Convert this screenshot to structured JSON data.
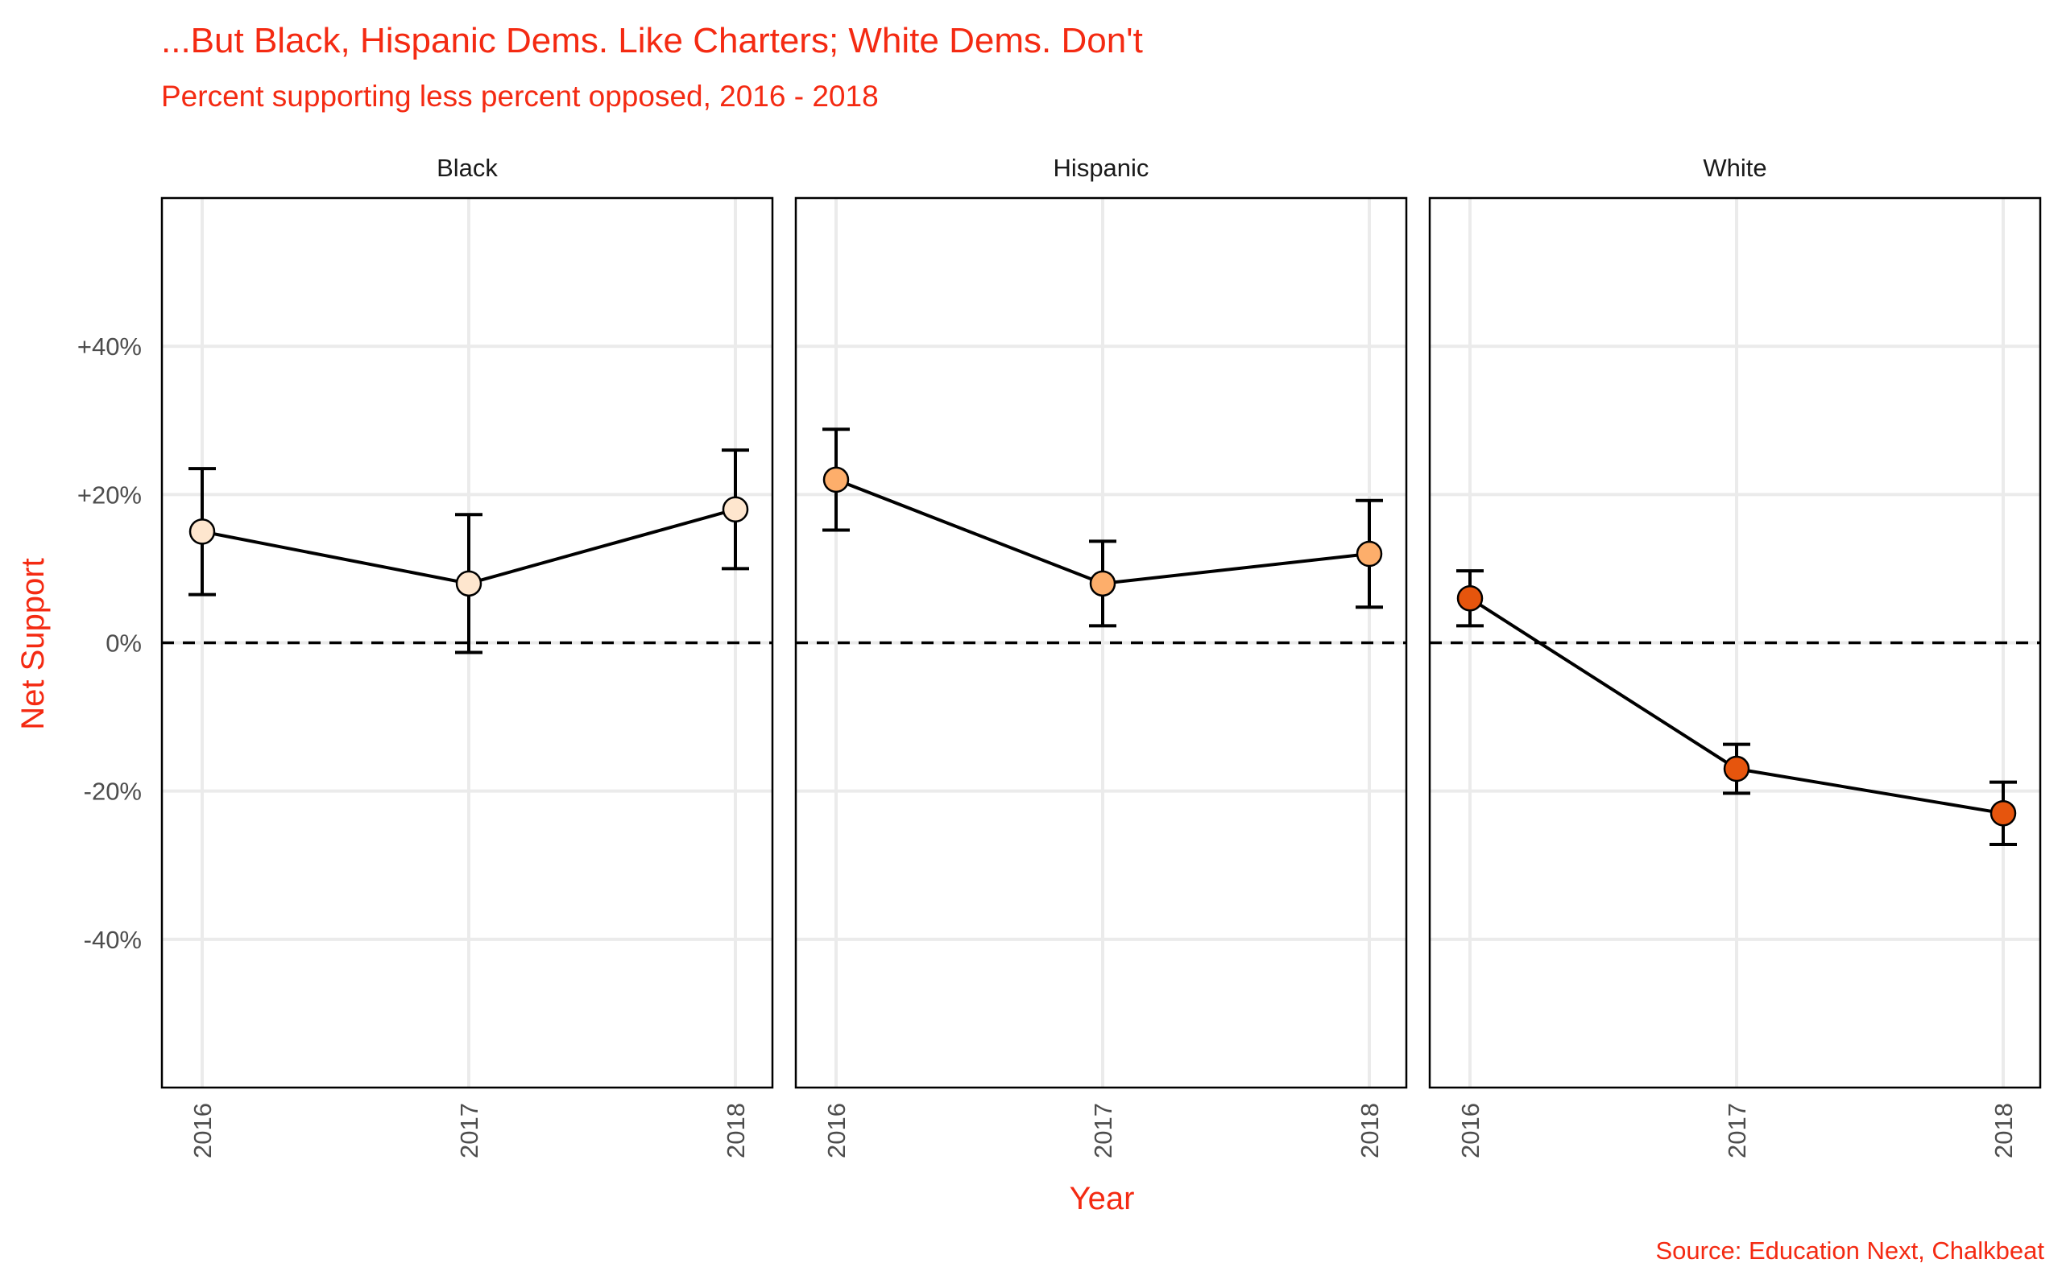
{
  "chart_data": {
    "type": "line",
    "title": "...But Black, Hispanic Dems. Like Charters; White Dems. Don't",
    "subtitle": "Percent supporting less percent opposed, 2016 - 2018",
    "xlabel": "Year",
    "ylabel": "Net Support",
    "caption": "Source: Education Next, Chalkbeat",
    "x": [
      "2016",
      "2017",
      "2018"
    ],
    "ylim": [
      -60,
      60
    ],
    "yticks": [
      -40,
      -20,
      0,
      20,
      40
    ],
    "ytick_labels": [
      "-40%",
      "-20%",
      "0%",
      "+20%",
      "+40%"
    ],
    "reference_line": {
      "y": 0,
      "style": "dashed"
    },
    "grid": true,
    "legend": "none",
    "series": [
      {
        "name": "Black",
        "color": "#fee6ce",
        "values": [
          15,
          8,
          18
        ],
        "lower": [
          6.5,
          -1.3,
          10
        ],
        "upper": [
          23.5,
          17.3,
          26
        ]
      },
      {
        "name": "Hispanic",
        "color": "#fdae6b",
        "values": [
          22,
          8,
          12
        ],
        "lower": [
          15.2,
          2.3,
          4.8
        ],
        "upper": [
          28.8,
          13.7,
          19.2
        ]
      },
      {
        "name": "White",
        "color": "#e6550d",
        "values": [
          6,
          -17,
          -23
        ],
        "lower": [
          2.3,
          -20.3,
          -27.2
        ],
        "upper": [
          9.7,
          -13.7,
          -18.8
        ]
      }
    ]
  }
}
